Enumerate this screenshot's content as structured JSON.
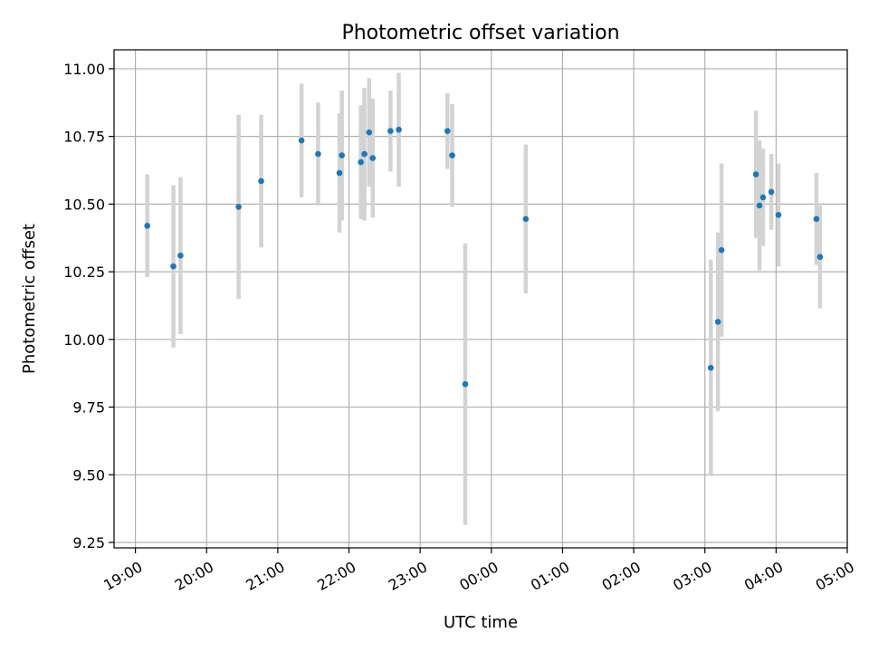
{
  "chart_data": {
    "type": "scatter",
    "title": "Photometric offset variation",
    "xlabel": "UTC time",
    "ylabel": "Photometric offset",
    "x_tick_labels": [
      "19:00",
      "20:00",
      "21:00",
      "22:00",
      "23:00",
      "00:00",
      "01:00",
      "02:00",
      "03:00",
      "04:00",
      "05:00"
    ],
    "y_ticks": [
      9.25,
      9.5,
      9.75,
      10.0,
      10.25,
      10.5,
      10.75,
      11.0
    ],
    "y_tick_labels": [
      "9.25",
      "9.50",
      "9.75",
      "10.00",
      "10.25",
      "10.50",
      "10.75",
      "11.00"
    ],
    "xlim": [
      "18:42",
      "05:00"
    ],
    "ylim": [
      9.23,
      11.07
    ],
    "grid": true,
    "colors": {
      "point": "#1f77b4",
      "errorbar": "#d3d3d3",
      "grid": "#b0b0b0"
    },
    "series": [
      {
        "points": [
          {
            "t": "19:10",
            "y": 10.42,
            "err": 0.19
          },
          {
            "t": "19:32",
            "y": 10.27,
            "err": 0.3
          },
          {
            "t": "19:38",
            "y": 10.31,
            "err": 0.29
          },
          {
            "t": "20:27",
            "y": 10.49,
            "err": 0.34
          },
          {
            "t": "20:46",
            "y": 10.585,
            "err": 0.245
          },
          {
            "t": "21:20",
            "y": 10.735,
            "err": 0.21
          },
          {
            "t": "21:34",
            "y": 10.685,
            "err": 0.19
          },
          {
            "t": "21:52",
            "y": 10.615,
            "err": 0.22
          },
          {
            "t": "21:54",
            "y": 10.68,
            "err": 0.24
          },
          {
            "t": "22:10",
            "y": 10.655,
            "err": 0.21
          },
          {
            "t": "22:13",
            "y": 10.685,
            "err": 0.245
          },
          {
            "t": "22:17",
            "y": 10.765,
            "err": 0.2
          },
          {
            "t": "22:20",
            "y": 10.67,
            "err": 0.22
          },
          {
            "t": "22:35",
            "y": 10.77,
            "err": 0.15
          },
          {
            "t": "22:42",
            "y": 10.775,
            "err": 0.21
          },
          {
            "t": "23:23",
            "y": 10.77,
            "err": 0.14
          },
          {
            "t": "23:27",
            "y": 10.68,
            "err": 0.19
          },
          {
            "t": "23:38",
            "y": 9.835,
            "err": 0.52
          },
          {
            "t": "00:29",
            "y": 10.445,
            "err": 0.275
          },
          {
            "t": "03:05",
            "y": 9.895,
            "err": 0.4
          },
          {
            "t": "03:11",
            "y": 10.065,
            "err": 0.33
          },
          {
            "t": "03:14",
            "y": 10.33,
            "err": 0.32
          },
          {
            "t": "03:43",
            "y": 10.61,
            "err": 0.235
          },
          {
            "t": "03:46",
            "y": 10.495,
            "err": 0.24
          },
          {
            "t": "03:49",
            "y": 10.525,
            "err": 0.18
          },
          {
            "t": "03:56",
            "y": 10.545,
            "err": 0.14
          },
          {
            "t": "04:02",
            "y": 10.46,
            "err": 0.19
          },
          {
            "t": "04:34",
            "y": 10.445,
            "err": 0.17
          },
          {
            "t": "04:37",
            "y": 10.305,
            "err": 0.19
          }
        ]
      }
    ]
  }
}
